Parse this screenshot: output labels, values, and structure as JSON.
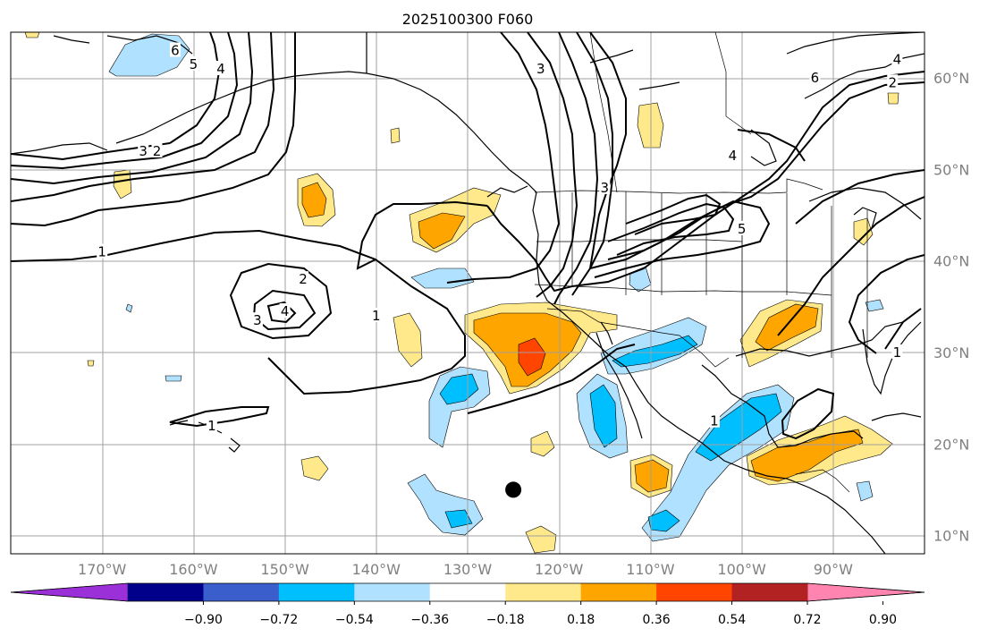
{
  "title": "2025100300 F060",
  "map": {
    "projection": "PlateCarree",
    "lon_range": [
      -180,
      -80
    ],
    "lat_range": [
      8,
      65
    ],
    "lat_ticks": [
      {
        "value": 10,
        "label": "10°N"
      },
      {
        "value": 20,
        "label": "20°N"
      },
      {
        "value": 30,
        "label": "30°N"
      },
      {
        "value": 40,
        "label": "40°N"
      },
      {
        "value": 50,
        "label": "50°N"
      },
      {
        "value": 60,
        "label": "60°N"
      }
    ],
    "lon_ticks": [
      {
        "value": -170,
        "label": "170°W"
      },
      {
        "value": -160,
        "label": "160°W"
      },
      {
        "value": -150,
        "label": "150°W"
      },
      {
        "value": -140,
        "label": "140°W"
      },
      {
        "value": -130,
        "label": "130°W"
      },
      {
        "value": -120,
        "label": "120°W"
      },
      {
        "value": -110,
        "label": "110°W"
      },
      {
        "value": -100,
        "label": "100°W"
      },
      {
        "value": -90,
        "label": "90°W"
      }
    ],
    "storm_marker": {
      "lon": -125,
      "lat": 15
    }
  },
  "colorbar": {
    "colors": [
      "#9b30d9",
      "#00008b",
      "#3a5fcd",
      "#00bfff",
      "#b0e2ff",
      "#ffffff",
      "#ffe98a",
      "#ffa500",
      "#ff4500",
      "#b22222",
      "#ff85b0"
    ],
    "ticks": [
      "−0.90",
      "−0.72",
      "−0.54",
      "−0.36",
      "−0.18",
      "0.18",
      "0.36",
      "0.54",
      "0.72",
      "0.90"
    ]
  },
  "contour_labels": [
    {
      "text": "1",
      "lon": -170,
      "lat": 41
    },
    {
      "text": "1",
      "lon": -140,
      "lat": 34
    },
    {
      "text": "1",
      "lon": -158,
      "lat": 22
    },
    {
      "text": "1",
      "lon": -103,
      "lat": 22.5
    },
    {
      "text": "1",
      "lon": -83,
      "lat": 30
    },
    {
      "text": "2",
      "lon": -148,
      "lat": 38
    },
    {
      "text": "3",
      "lon": -153,
      "lat": 33.5
    },
    {
      "text": "4",
      "lon": -150,
      "lat": 34.5
    },
    {
      "text": "3",
      "lon": -165.5,
      "lat": 52
    },
    {
      "text": "2",
      "lon": -164,
      "lat": 52
    },
    {
      "text": "6",
      "lon": -162,
      "lat": 63
    },
    {
      "text": "5",
      "lon": -160,
      "lat": 61.5
    },
    {
      "text": "4",
      "lon": -157,
      "lat": 61
    },
    {
      "text": "3",
      "lon": -122,
      "lat": 61
    },
    {
      "text": "3",
      "lon": -115,
      "lat": 48
    },
    {
      "text": "5",
      "lon": -100,
      "lat": 43.5
    },
    {
      "text": "4",
      "lon": -101,
      "lat": 51.5
    },
    {
      "text": "6",
      "lon": -92,
      "lat": 60
    },
    {
      "text": "4",
      "lon": -83,
      "lat": 62
    },
    {
      "text": "2",
      "lon": -83.5,
      "lat": 59.5
    }
  ]
}
